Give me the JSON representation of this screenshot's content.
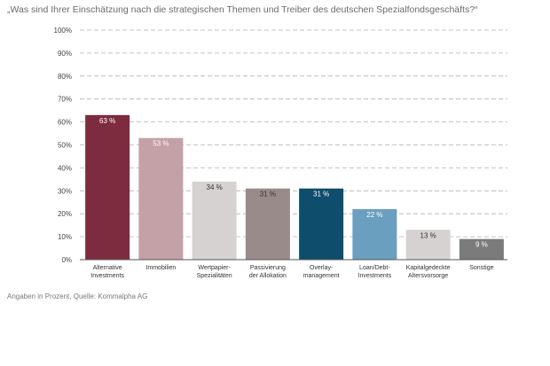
{
  "title": "„Was sind Ihrer Einschätzung nach die strategischen Themen und Treiber des deutschen Spezialfondsgeschäfts?“",
  "source": "Angaben in Prozent, Quelle: Kommalpha AG",
  "chart_data": {
    "type": "bar",
    "categories": [
      [
        "Alternative",
        "Investments"
      ],
      [
        "Immobilien"
      ],
      [
        "Wertpapier-",
        "Spezialitäten"
      ],
      [
        "Passivierung",
        "der Allokation"
      ],
      [
        "Overlay-",
        "management"
      ],
      [
        "Loan/Debt-",
        "Investments"
      ],
      [
        "Kapitalgedeckte",
        "Altersvorsorge"
      ],
      [
        "Sonstige"
      ]
    ],
    "values": [
      63,
      53,
      34,
      31,
      31,
      22,
      13,
      9
    ],
    "value_labels": [
      "63 %",
      "53 %",
      "34 %",
      "31 %",
      "31 %",
      "22 %",
      "13 %",
      "9 %"
    ],
    "colors": [
      "#7d2b3f",
      "#c4a0a7",
      "#d6d2d2",
      "#9a8b8b",
      "#0e4d6b",
      "#6a9fc0",
      "#d6d2d2",
      "#7b7b7b"
    ],
    "label_colors": [
      "#ffffff",
      "#ffffff",
      "#333333",
      "#333333",
      "#ffffff",
      "#ffffff",
      "#333333",
      "#ffffff"
    ],
    "ylim": [
      0,
      100
    ],
    "yticks": [
      0,
      10,
      20,
      30,
      40,
      50,
      60,
      70,
      80,
      90,
      100
    ],
    "ytick_labels": [
      "0%",
      "10%",
      "20%",
      "30%",
      "40%",
      "50%",
      "60%",
      "70%",
      "80%",
      "90%",
      "100%"
    ],
    "grid": true,
    "xlabel": "",
    "ylabel": ""
  }
}
